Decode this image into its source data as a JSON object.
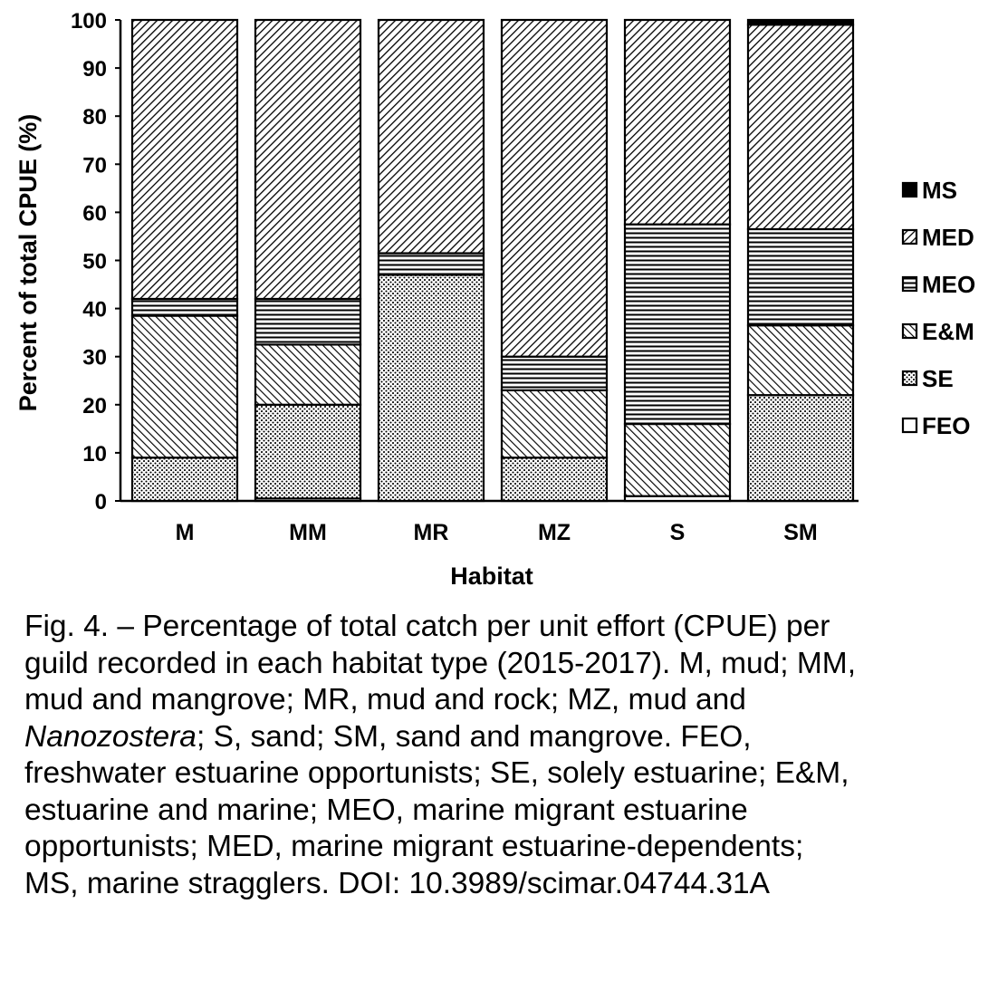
{
  "chart_data": {
    "type": "bar",
    "stacked": true,
    "percent": true,
    "xlabel": "Habitat",
    "ylabel": "Percent of total CPUE (%)",
    "ylim": [
      0,
      100
    ],
    "yticks": [
      0,
      10,
      20,
      30,
      40,
      50,
      60,
      70,
      80,
      90,
      100
    ],
    "grid": false,
    "legend_position": "right",
    "categories": [
      "M",
      "MM",
      "MR",
      "MZ",
      "S",
      "SM"
    ],
    "series": [
      {
        "name": "FEO",
        "pattern": "open",
        "values": [
          0,
          0.5,
          0,
          0,
          1,
          0
        ]
      },
      {
        "name": "SE",
        "pattern": "dots",
        "values": [
          9,
          19.5,
          47,
          9,
          0,
          22
        ]
      },
      {
        "name": "E&M",
        "pattern": "backslash",
        "values": [
          29.5,
          12.5,
          0,
          14,
          15,
          14.5
        ]
      },
      {
        "name": "MEO",
        "pattern": "horizontal",
        "values": [
          3.5,
          9.5,
          4.5,
          7,
          41.5,
          20
        ]
      },
      {
        "name": "MED",
        "pattern": "forwardslash",
        "values": [
          58,
          58,
          48.5,
          70,
          42.5,
          42.5
        ]
      },
      {
        "name": "MS",
        "pattern": "solid",
        "values": [
          0,
          0,
          0,
          0,
          0,
          1
        ]
      }
    ]
  },
  "caption": {
    "line1": "Fig. 4. – Percentage of total catch per unit effort (CPUE) per",
    "line2": "guild recorded in each habitat type (2015-2017). M, mud; MM,",
    "line3": "mud and mangrove; MR, mud and rock; MZ, mud and",
    "line4_italic": "Nanozostera",
    "line4_rest": "; S, sand; SM, sand and mangrove. FEO,",
    "line5": "freshwater estuarine opportunists; SE, solely estuarine; E&M,",
    "line6": "estuarine and marine; MEO, marine migrant estuarine",
    "line7": "opportunists; MED, marine migrant estuarine-dependents;",
    "line8": "MS, marine stragglers. DOI: 10.3989/scimar.04744.31A"
  }
}
